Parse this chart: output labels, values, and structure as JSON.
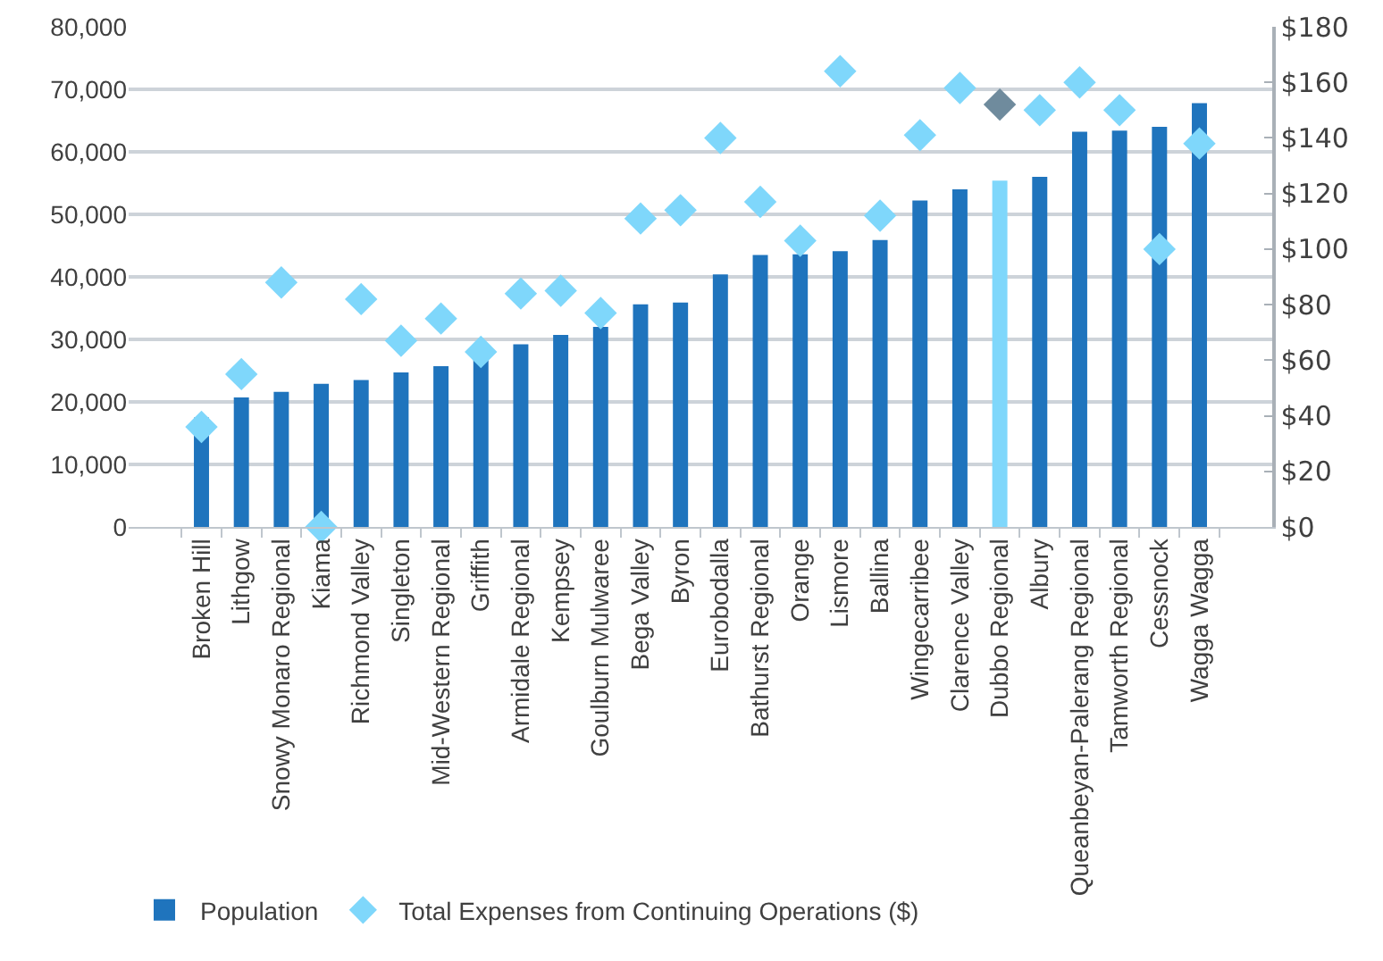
{
  "chart_data": {
    "type": "bar",
    "categories": [
      "Broken Hill",
      "Lithgow",
      "Snowy Monaro Regional",
      "Kiama",
      "Richmond Valley",
      "Singleton",
      "Mid-Western Regional",
      "Griffith",
      "Armidale Regional",
      "Kempsey",
      "Goulburn Mulwaree",
      "Bega Valley",
      "Byron",
      "Eurobodalla",
      "Bathurst Regional",
      "Orange",
      "Lismore",
      "Ballina",
      "Wingecarribee",
      "Clarence Valley",
      "Dubbo Regional",
      "Albury",
      "Queanbeyan-Palerang Regional",
      "Tamworth Regional",
      "Cessnock",
      "Wagga Wagga"
    ],
    "series": [
      {
        "name": "Population",
        "values": [
          17500,
          20700,
          21600,
          22900,
          23500,
          24700,
          25700,
          27000,
          29200,
          30700,
          32000,
          35600,
          35900,
          40400,
          43500,
          43600,
          44100,
          45900,
          52200,
          54000,
          55400,
          56000,
          63200,
          63400,
          64000,
          67800
        ],
        "colors": [
          "#1f74bd",
          "#1f74bd",
          "#1f74bd",
          "#1f74bd",
          "#1f74bd",
          "#1f74bd",
          "#1f74bd",
          "#1f74bd",
          "#1f74bd",
          "#1f74bd",
          "#1f74bd",
          "#1f74bd",
          "#1f74bd",
          "#1f74bd",
          "#1f74bd",
          "#1f74bd",
          "#1f74bd",
          "#1f74bd",
          "#1f74bd",
          "#1f74bd",
          "#7fd7fb",
          "#1f74bd",
          "#1f74bd",
          "#1f74bd",
          "#1f74bd",
          "#1f74bd"
        ]
      },
      {
        "name": "Total Expenses from Continuing Operations ($)",
        "type": "scatter",
        "axis": "y2",
        "values": [
          36,
          55,
          88,
          0,
          82,
          67,
          75,
          63,
          84,
          85,
          77,
          111,
          114,
          140,
          117,
          103,
          164,
          112,
          141,
          158,
          152,
          150,
          160,
          150,
          100,
          138
        ],
        "colors": [
          "#7fd7fb",
          "#7fd7fb",
          "#7fd7fb",
          "#7fd7fb",
          "#7fd7fb",
          "#7fd7fb",
          "#7fd7fb",
          "#7fd7fb",
          "#7fd7fb",
          "#7fd7fb",
          "#7fd7fb",
          "#7fd7fb",
          "#7fd7fb",
          "#7fd7fb",
          "#7fd7fb",
          "#7fd7fb",
          "#7fd7fb",
          "#7fd7fb",
          "#7fd7fb",
          "#7fd7fb",
          "#6f8b9d",
          "#7fd7fb",
          "#7fd7fb",
          "#7fd7fb",
          "#7fd7fb",
          "#7fd7fb"
        ]
      }
    ],
    "ylim": [
      0,
      80000
    ],
    "yticks": [
      0,
      {
        "value": 10000,
        "label": "10,000"
      },
      {
        "value": 20000,
        "label": "20,000"
      },
      {
        "value": 30000,
        "label": "30,000"
      },
      {
        "value": 40000,
        "label": "40,000"
      },
      {
        "value": 50000,
        "label": "50,000"
      },
      {
        "value": 60000,
        "label": "60,000"
      },
      {
        "value": 70000,
        "label": "70,000"
      },
      {
        "value": 80000,
        "label": "80,000"
      }
    ],
    "y2lim": [
      0,
      180
    ],
    "y2ticks": [
      {
        "value": 0,
        "label": "$0"
      },
      {
        "value": 20,
        "label": "$20"
      },
      {
        "value": 40,
        "label": "$40"
      },
      {
        "value": 60,
        "label": "$60"
      },
      {
        "value": 80,
        "label": "$80"
      },
      {
        "value": 100,
        "label": "$100"
      },
      {
        "value": 120,
        "label": "$120"
      },
      {
        "value": 140,
        "label": "$140"
      },
      {
        "value": 160,
        "label": "$160"
      },
      {
        "value": 180,
        "label": "$180"
      }
    ],
    "grid": "y",
    "legend": "bottom left",
    "marker": "diamond"
  }
}
